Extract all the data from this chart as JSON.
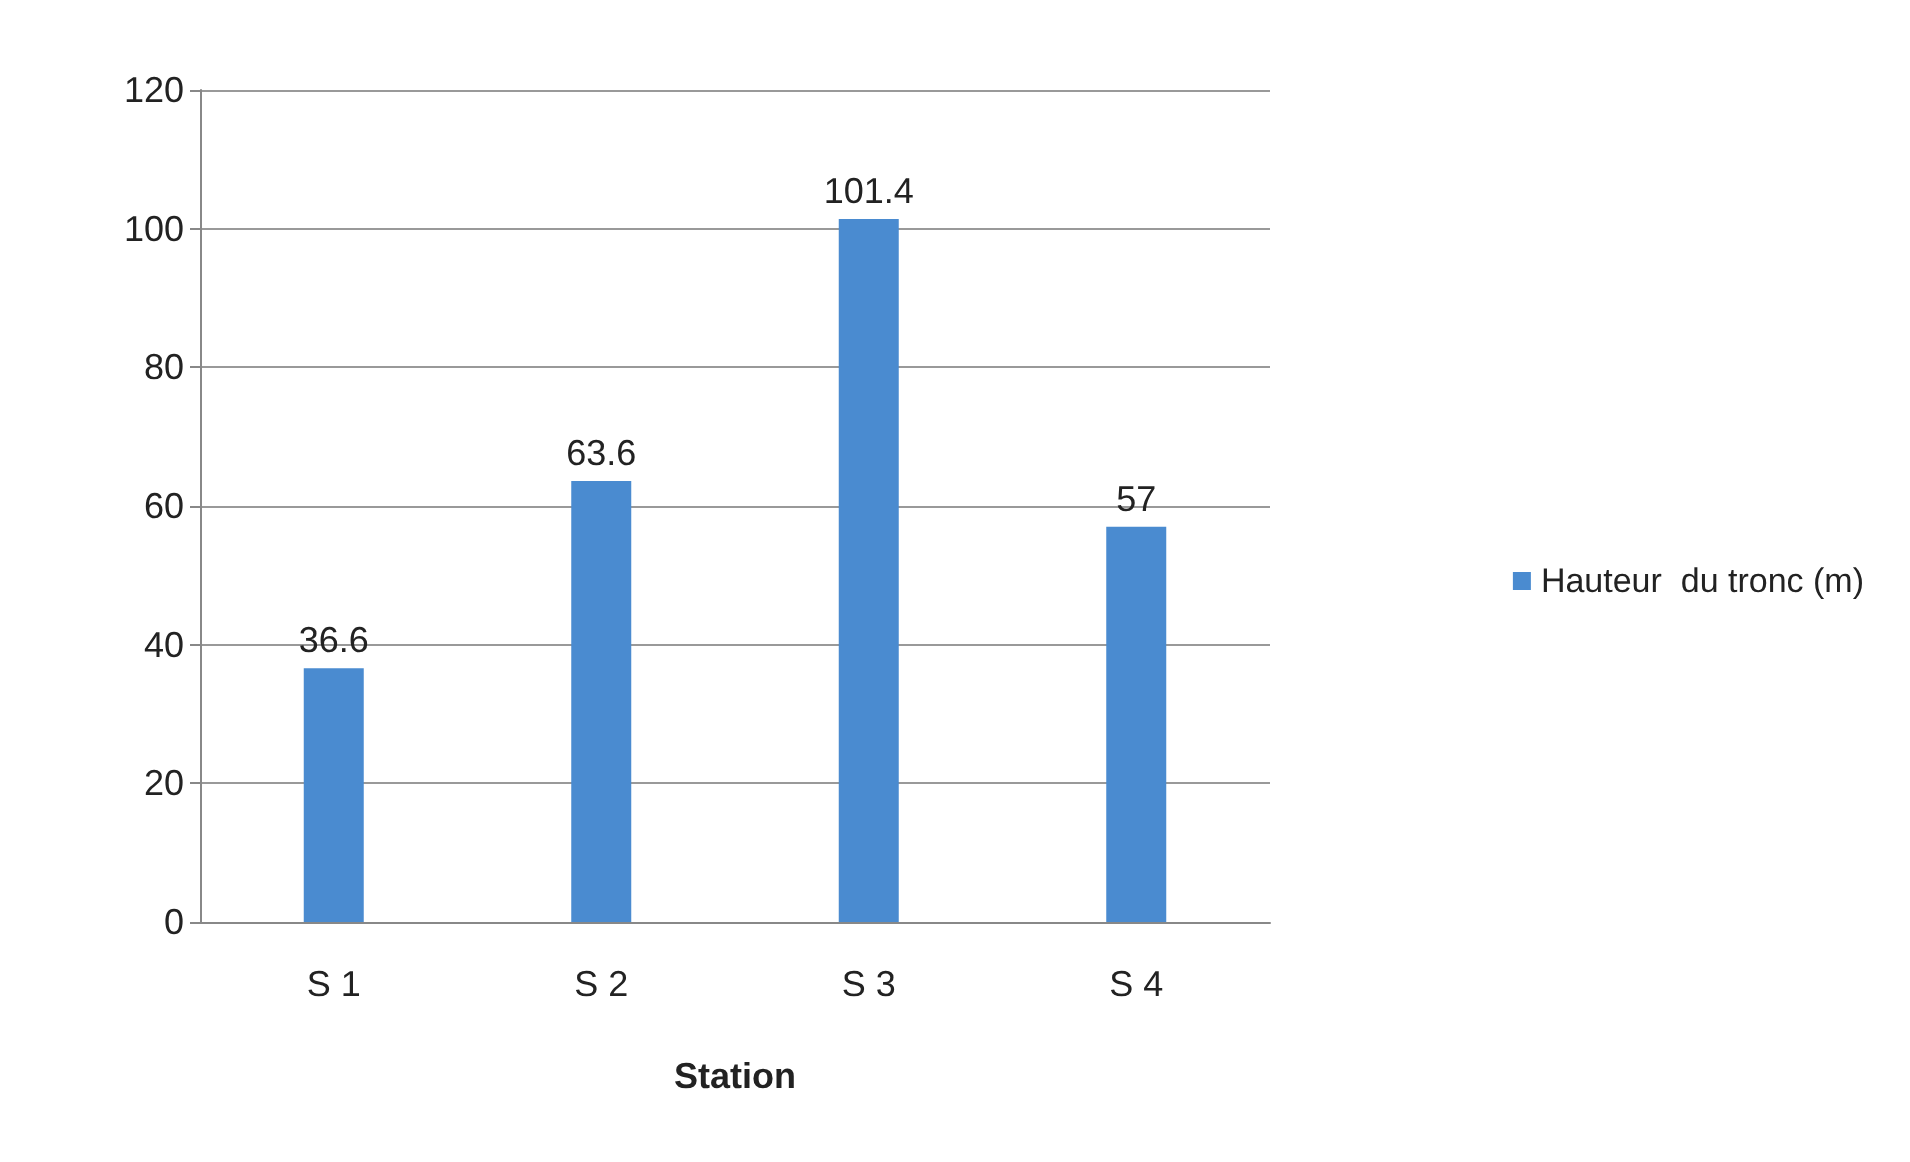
{
  "chart_data": {
    "type": "bar",
    "xlabel": "Station",
    "categories": [
      "S 1",
      "S 2",
      "S 3",
      "S 4"
    ],
    "series": [
      {
        "name": "Hauteur  du tronc (m)",
        "color": "#4a8bd0",
        "values": [
          36.6,
          63.6,
          101.4,
          57
        ]
      }
    ],
    "ylim": [
      0,
      120
    ],
    "yticks": [
      0,
      20,
      40,
      60,
      80,
      100,
      120
    ],
    "grid": "y",
    "legend": "right",
    "data_labels": true
  }
}
